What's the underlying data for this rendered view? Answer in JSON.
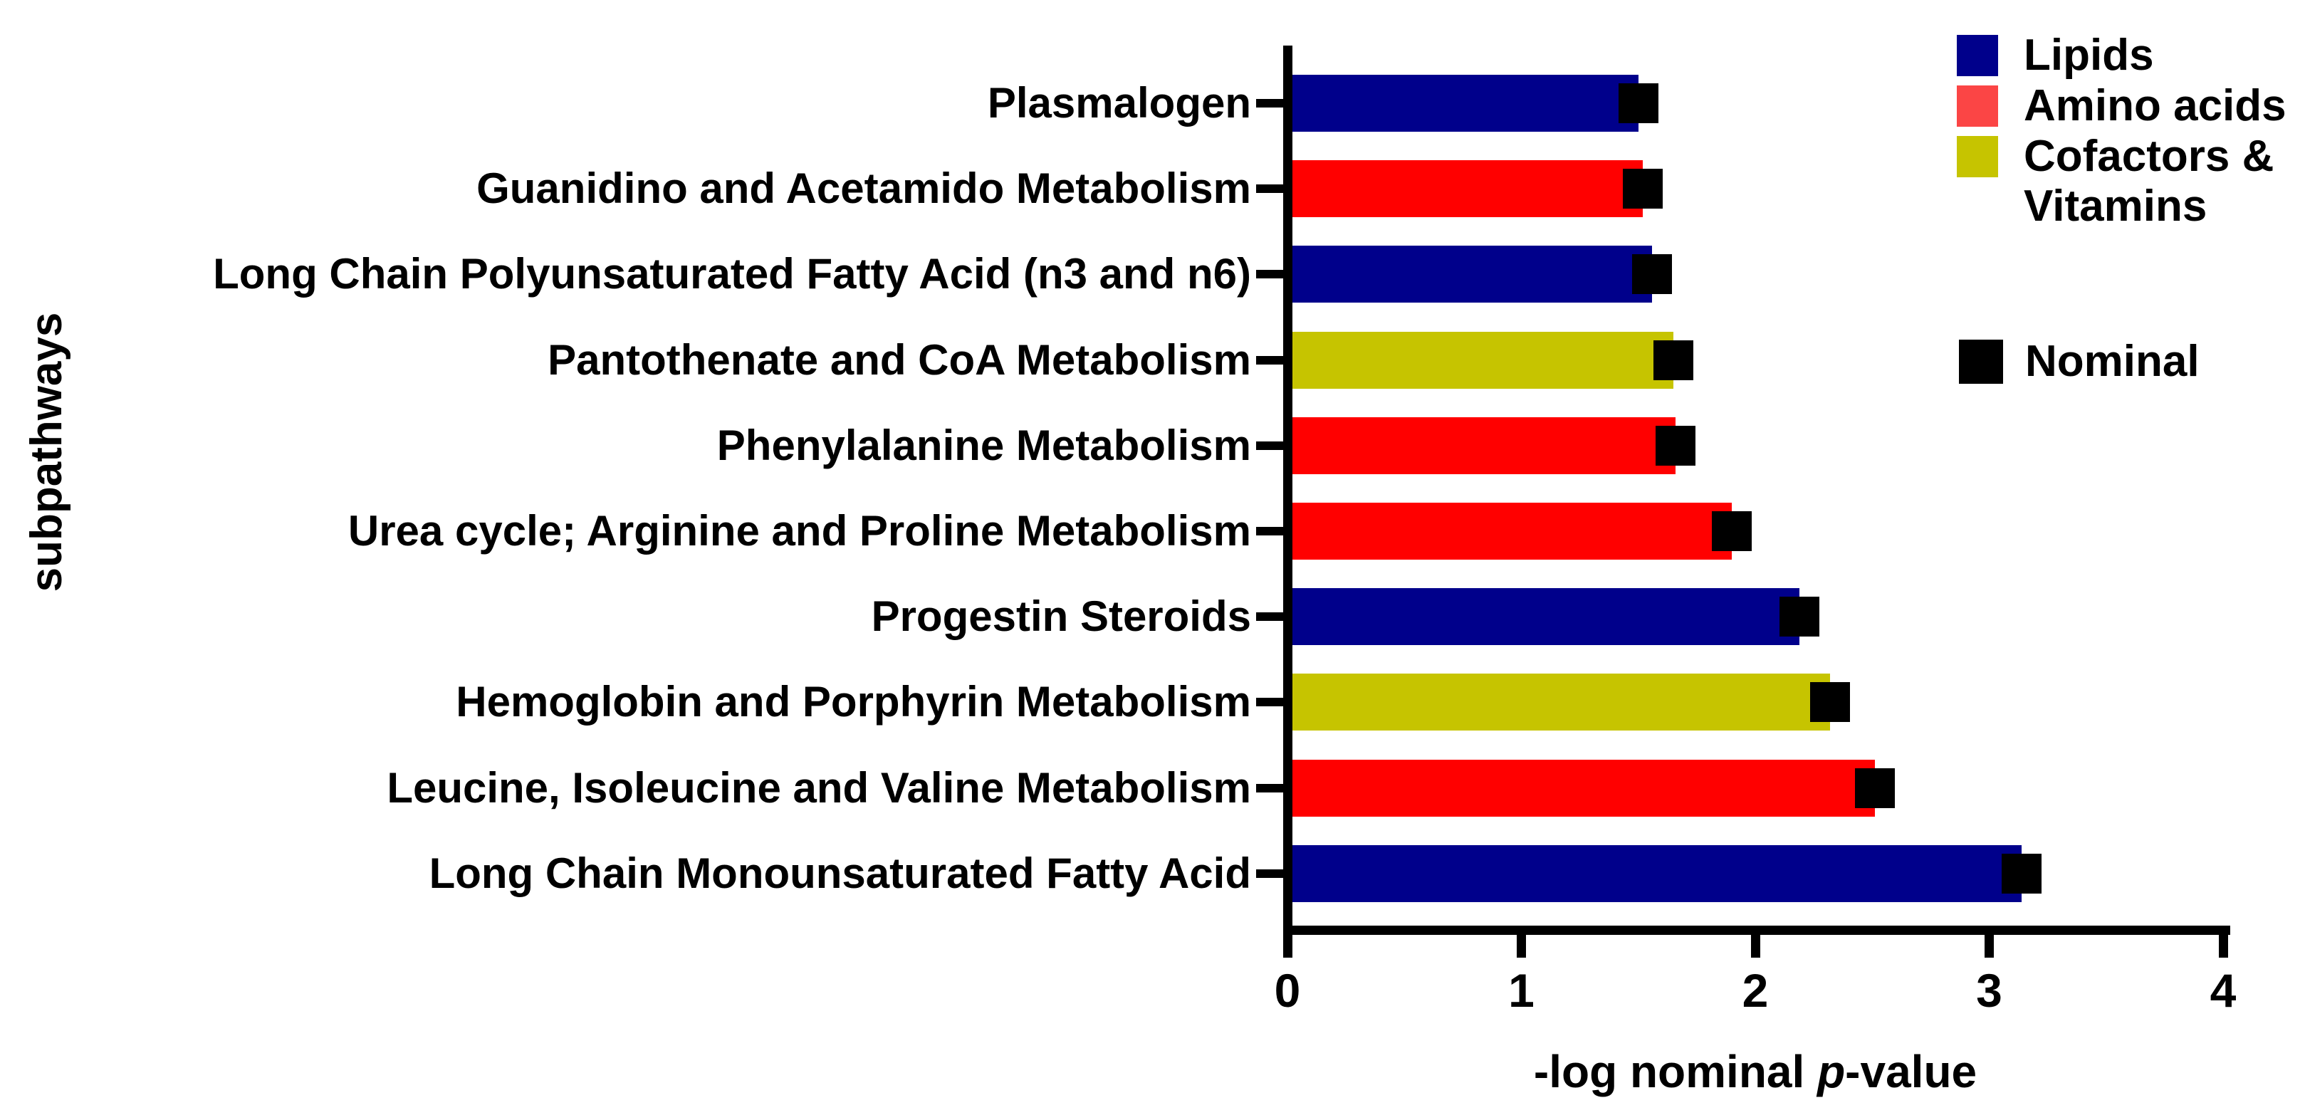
{
  "figure": {
    "background": "#ffffff",
    "axis_color": "#000000"
  },
  "legend": {
    "items": [
      {
        "lines": [
          "Lipids"
        ],
        "color": "#00008b"
      },
      {
        "lines": [
          "Amino acids"
        ],
        "color": "#fb4545"
      },
      {
        "lines": [
          "Cofactors &",
          "Vitamins"
        ],
        "color": "#c6c400"
      }
    ],
    "nominal": {
      "label": "Nominal",
      "color": "#000000"
    }
  },
  "chart_data": {
    "type": "bar",
    "orientation": "horizontal",
    "title": "",
    "ylabel": "subpathways",
    "xlabel": "-log nominal p-value",
    "xlabel_parts": [
      "-log nominal ",
      "p",
      "-value"
    ],
    "xlim": [
      0,
      4
    ],
    "x_ticks": [
      0,
      1,
      2,
      3,
      4
    ],
    "grid": false,
    "legend_position": "top-right",
    "bars": [
      {
        "category": "Plasmalogen",
        "group": "Lipids",
        "value": 1.5
      },
      {
        "category": "Guanidino and Acetamido Metabolism",
        "group": "Amino acids",
        "value": 1.52
      },
      {
        "category": "Long Chain Polyunsaturated Fatty Acid (n3 and n6)",
        "group": "Lipids",
        "value": 1.56
      },
      {
        "category": "Pantothenate and CoA Metabolism",
        "group": "Cofactors & Vitamins",
        "value": 1.65
      },
      {
        "category": "Phenylalanine Metabolism",
        "group": "Amino acids",
        "value": 1.66
      },
      {
        "category": "Urea cycle; Arginine and Proline Metabolism",
        "group": "Amino acids",
        "value": 1.9
      },
      {
        "category": "Progestin Steroids",
        "group": "Lipids",
        "value": 2.19
      },
      {
        "category": "Hemoglobin and Porphyrin Metabolism",
        "group": "Cofactors & Vitamins",
        "value": 2.32
      },
      {
        "category": "Leucine, Isoleucine and Valine Metabolism",
        "group": "Amino acids",
        "value": 2.51
      },
      {
        "category": "Long Chain Monounsaturated Fatty Acid",
        "group": "Lipids",
        "value": 3.14
      }
    ],
    "group_colors": {
      "Lipids": "#00008b",
      "Amino acids": "#ff0000",
      "Cofactors & Vitamins": "#c6c400"
    },
    "nominal_marker": {
      "shape": "square",
      "color": "#000000",
      "position": "bar-tip",
      "label": "Nominal"
    }
  }
}
